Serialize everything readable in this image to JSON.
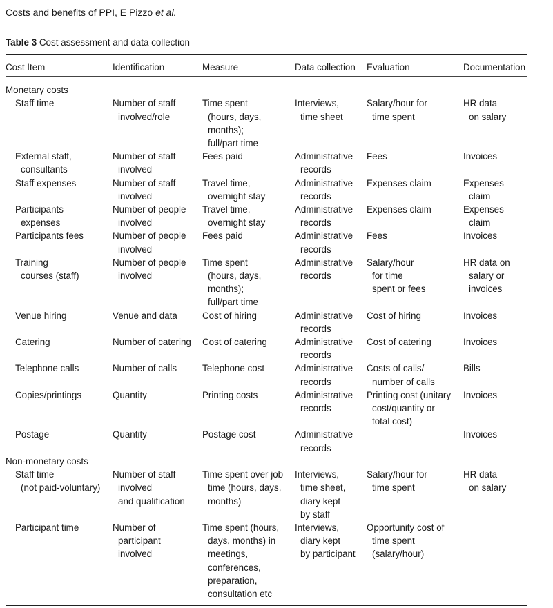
{
  "running_head": {
    "text": "Costs and benefits of PPI,  E Pizzo ",
    "italic": "et al."
  },
  "caption": {
    "label": "Table 3",
    "title": " Cost assessment and data collection"
  },
  "columns": [
    "Cost Item",
    "Identification",
    "Measure",
    "Data collection",
    "Evaluation",
    "Documentation"
  ],
  "sections": [
    {
      "title": "Monetary costs",
      "rows": [
        [
          "Staff time",
          "Number of staff\ninvolved/role",
          "Time spent\n(hours, days,\nmonths);\nfull/part time",
          "Interviews,\ntime sheet",
          "Salary/hour for\ntime spent",
          "HR data\non salary"
        ],
        [
          "External staff,\nconsultants",
          "Number of staff\ninvolved",
          "Fees paid",
          "Administrative\nrecords",
          "Fees",
          "Invoices"
        ],
        [
          "Staff expenses",
          "Number of staff\ninvolved",
          "Travel time,\novernight stay",
          "Administrative\nrecords",
          "Expenses claim",
          "Expenses claim"
        ],
        [
          "Participants\nexpenses",
          "Number of people\ninvolved",
          "Travel time,\novernight stay",
          "Administrative\nrecords",
          "Expenses claim",
          "Expenses claim"
        ],
        [
          "Participants fees",
          "Number of people\ninvolved",
          "Fees paid",
          "Administrative\nrecords",
          "Fees",
          "Invoices"
        ],
        [
          "Training\ncourses (staff)",
          "Number of people\ninvolved",
          "Time spent\n(hours, days,\nmonths);\nfull/part time",
          "Administrative\nrecords",
          "Salary/hour\nfor time\nspent or fees",
          "HR data on\nsalary or\ninvoices"
        ],
        [
          "Venue hiring",
          "Venue and data",
          "Cost of hiring",
          "Administrative\nrecords",
          "Cost of hiring",
          "Invoices"
        ],
        [
          "Catering",
          "Number of catering",
          "Cost of catering",
          "Administrative\nrecords",
          "Cost of catering",
          "Invoices"
        ],
        [
          "Telephone calls",
          "Number of calls",
          "Telephone cost",
          "Administrative\nrecords",
          "Costs of calls/\nnumber of calls",
          "Bills"
        ],
        [
          "Copies/printings",
          "Quantity",
          "Printing costs",
          "Administrative\nrecords",
          "Printing cost (unitary\ncost/quantity or\ntotal cost)",
          "Invoices"
        ],
        [
          "Postage",
          "Quantity",
          "Postage cost",
          "Administrative\nrecords",
          "",
          "Invoices"
        ]
      ]
    },
    {
      "title": "Non-monetary costs",
      "rows": [
        [
          "Staff time\n(not paid-voluntary)",
          "Number of staff\ninvolved\nand qualification",
          "Time spent over job\ntime (hours, days,\nmonths)",
          "Interviews,\ntime sheet,\ndiary kept\nby staff",
          "Salary/hour for\ntime spent",
          "HR data\non salary"
        ],
        [
          "Participant time",
          "Number of\nparticipant\ninvolved",
          "Time spent (hours,\ndays, months) in\nmeetings,\nconferences,\npreparation,\nconsultation etc",
          "Interviews,\ndiary kept\nby participant",
          "Opportunity cost of\ntime spent\n(salary/hour)",
          ""
        ]
      ]
    }
  ]
}
